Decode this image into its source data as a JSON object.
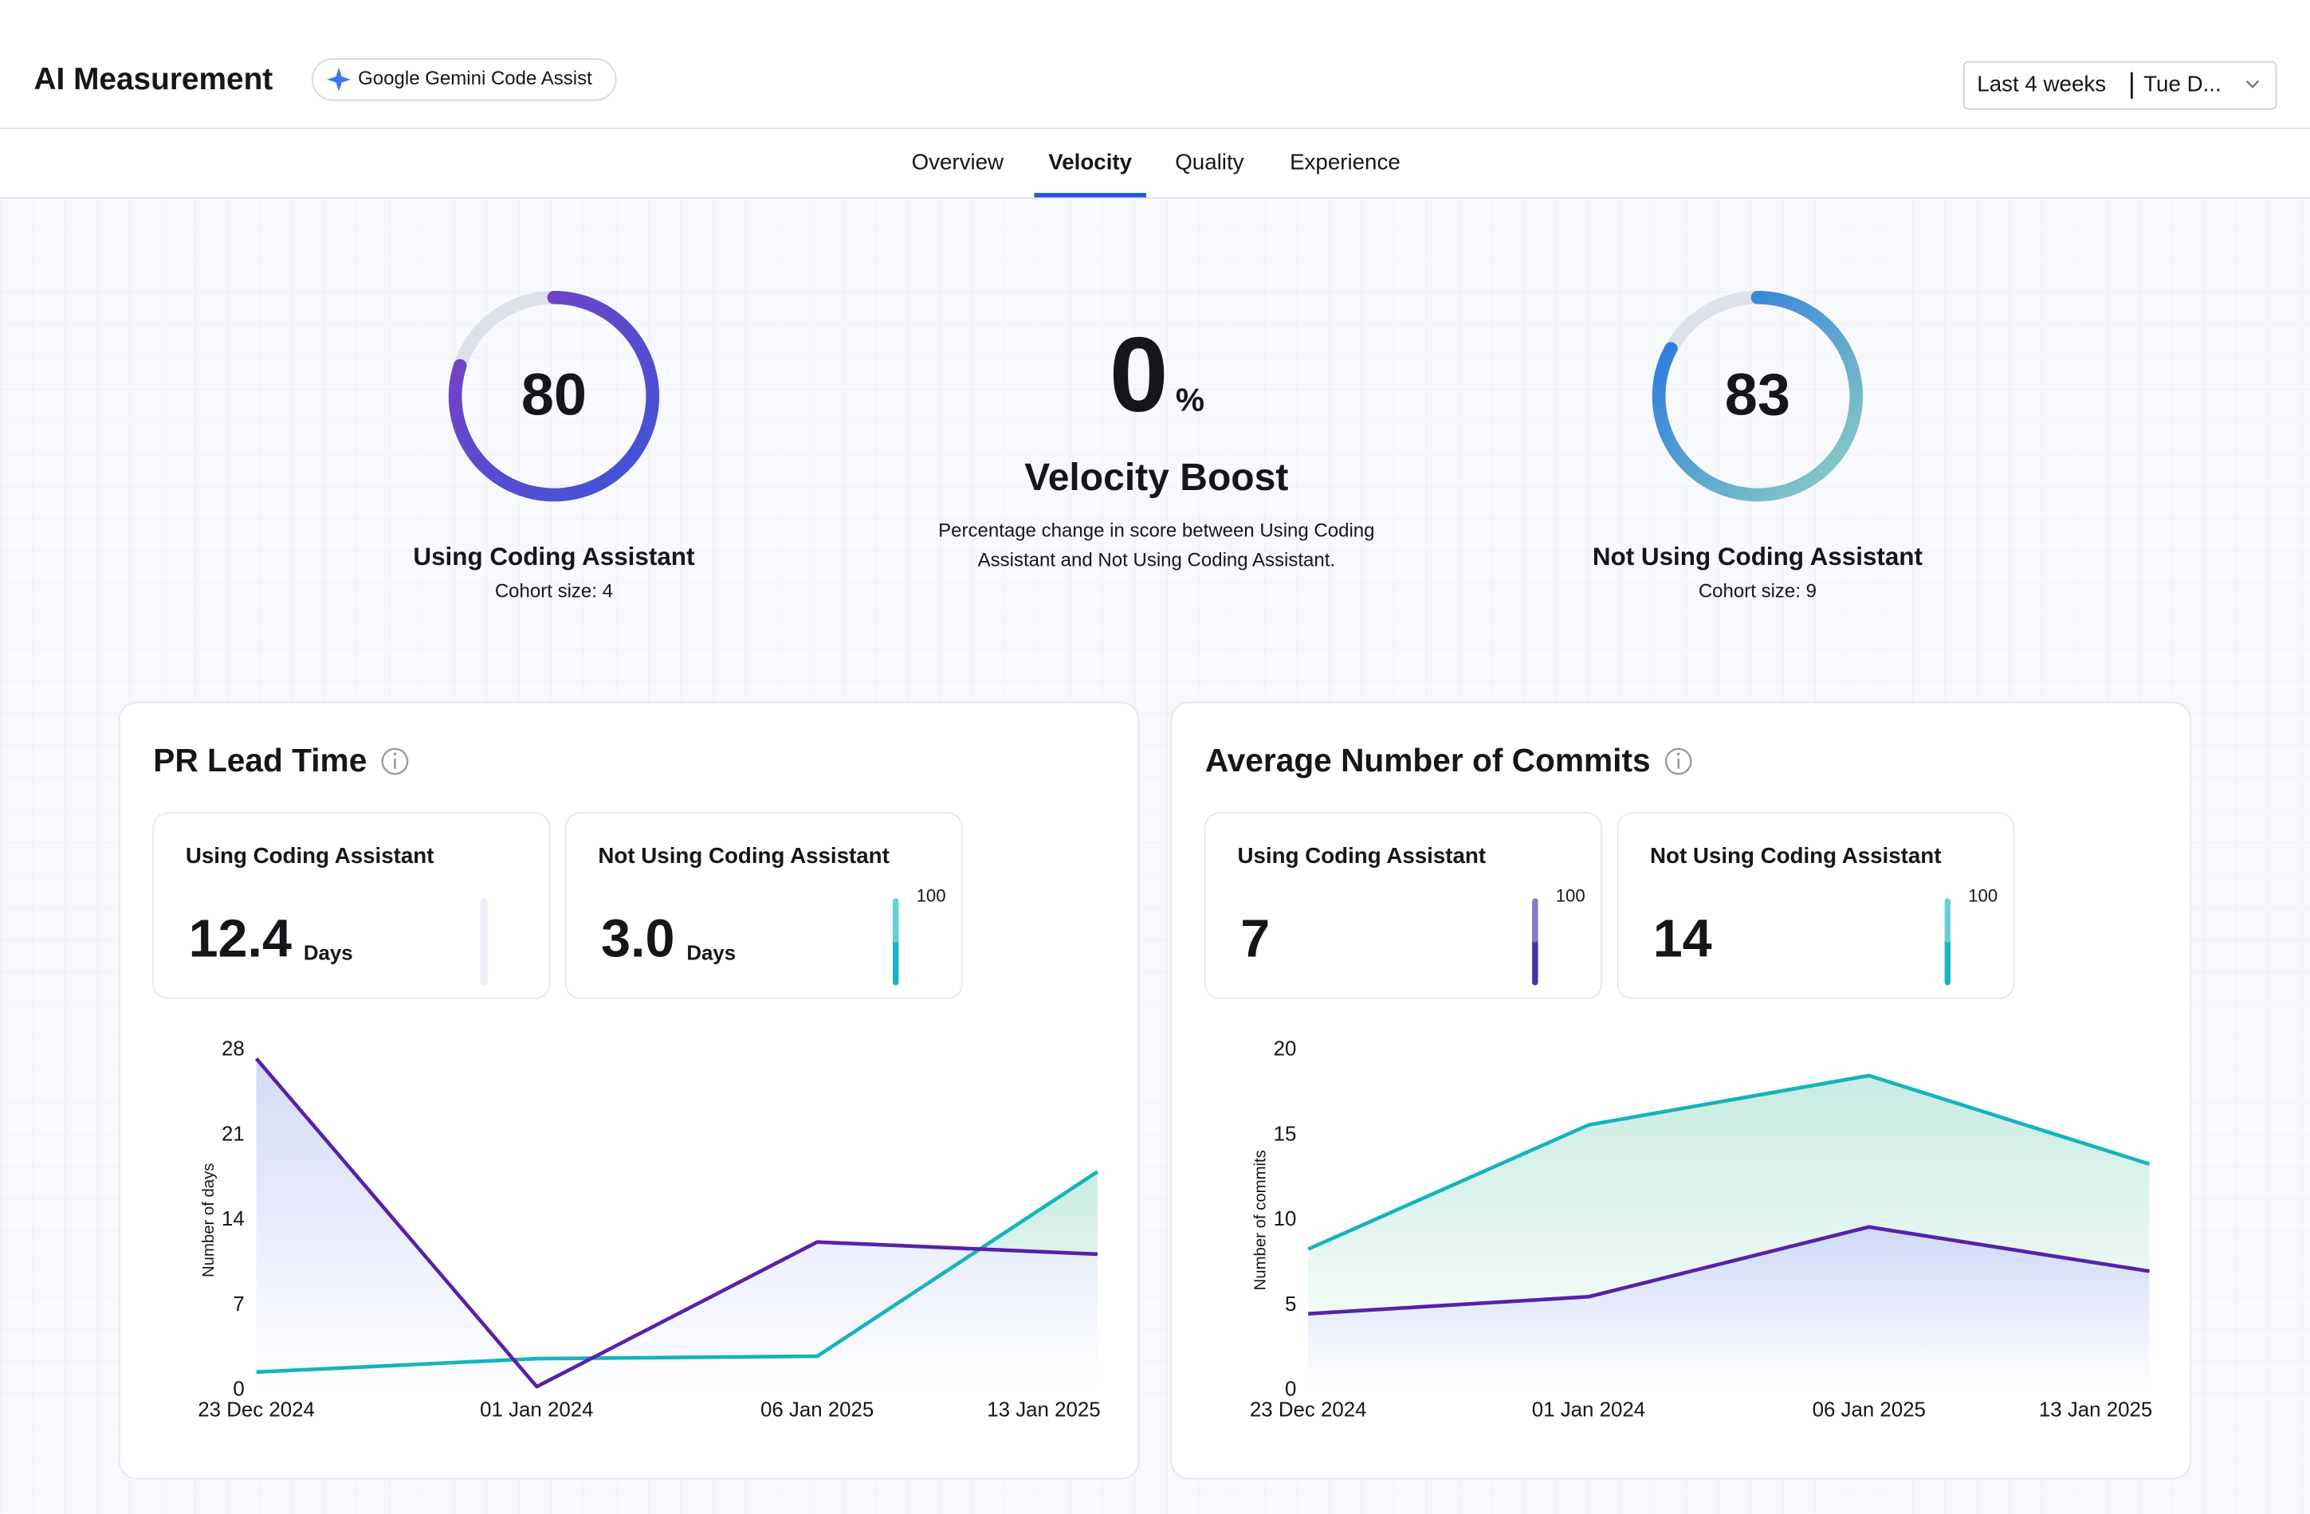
{
  "header": {
    "title": "AI Measurement",
    "badge": "Google Gemini Code Assist",
    "date_range": "Last 4 weeks",
    "date_end": "Tue D..."
  },
  "tabs": [
    "Overview",
    "Velocity",
    "Quality",
    "Experience"
  ],
  "active_tab": 1,
  "scores": {
    "using": {
      "value": 80,
      "max": 100,
      "label": "Using Coding Assistant",
      "cohort": "Cohort size: 4",
      "colors": [
        "#7b3fc4",
        "#3d55d8"
      ]
    },
    "boost": {
      "value": 0,
      "unit": "%",
      "title": "Velocity Boost",
      "description": [
        "Percentage change in score between Using Coding",
        "Assistant and Not Using Coding Assistant."
      ]
    },
    "not_using": {
      "value": 83,
      "max": 100,
      "label": "Not Using Coding Assistant",
      "cohort": "Cohort size: 9",
      "colors": [
        "#1f6fe0",
        "#8fd3c2"
      ]
    }
  },
  "panels": [
    {
      "title": "PR Lead Time",
      "stats": [
        {
          "label": "Using Coding Assistant",
          "label_color": "#4a1fb0",
          "value": "12.4",
          "unit": "Days",
          "bar_color": "#eceef6"
        },
        {
          "label": "Not Using Coding Assistant",
          "label_color": "#17b5bf",
          "value": "3.0",
          "unit": "Days",
          "bar_color": "#17b5bf",
          "scale_max": "100"
        }
      ],
      "chart_data": {
        "type": "area",
        "y_label": "Number of days",
        "categories": [
          "23 Dec 2024",
          "01 Jan 2024",
          "06 Jan 2025",
          "13 Jan 2025"
        ],
        "ylim": [
          0,
          28
        ],
        "yticks": [
          0,
          7,
          14,
          21,
          28
        ],
        "grid": false,
        "series": [
          {
            "name": "Not Using Coding Assistant",
            "color": "#14b4bd",
            "fill": "#bfe8dd",
            "values": [
              1.5,
              2.6,
              2.8,
              18
            ]
          },
          {
            "name": "Using Coding Assistant",
            "color": "#5522a8",
            "fill": "#cdd3f6",
            "values": [
              27.3,
              0.3,
              12.2,
              11.2
            ]
          }
        ]
      }
    },
    {
      "title": "Average Number of Commits",
      "stats": [
        {
          "label": "Using Coding Assistant",
          "label_color": "#4a1fb0",
          "value": "7",
          "bar_color": "#4b2fa8",
          "scale_max": "100"
        },
        {
          "label": "Not Using Coding Assistant",
          "label_color": "#17b5bf",
          "value": "14",
          "bar_color": "#17b5bf",
          "scale_max": "100"
        }
      ],
      "chart_data": {
        "type": "area",
        "y_label": "Number of commits",
        "categories": [
          "23 Dec 2024",
          "01 Jan 2024",
          "06 Jan 2025",
          "13 Jan 2025"
        ],
        "ylim": [
          0,
          20
        ],
        "yticks": [
          0,
          5,
          10,
          15,
          20
        ],
        "grid": false,
        "series": [
          {
            "name": "Not Using Coding Assistant",
            "color": "#14b4bd",
            "fill": "#bfe8dd",
            "values": [
              8.3,
              15.6,
              18.5,
              13.3
            ]
          },
          {
            "name": "Using Coding Assistant",
            "color": "#5522a8",
            "fill": "#cdd3f6",
            "values": [
              4.5,
              5.5,
              9.6,
              7
            ]
          }
        ]
      }
    }
  ]
}
